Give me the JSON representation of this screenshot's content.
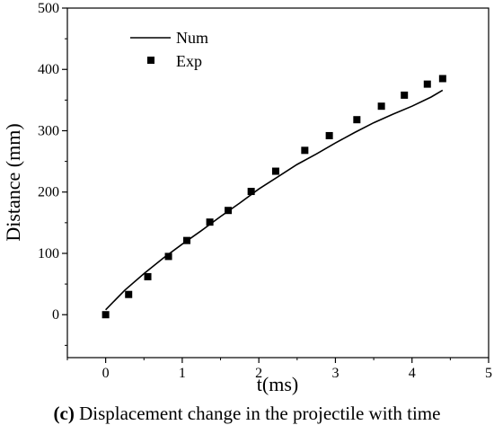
{
  "chart_data": {
    "type": "line+scatter",
    "title": "",
    "xlabel": "t(ms)",
    "ylabel": "Distance (mm)",
    "xlim": [
      -0.5,
      5
    ],
    "ylim": [
      -70,
      500
    ],
    "xticks": [
      "0",
      "1",
      "2",
      "3",
      "4",
      "5"
    ],
    "yticks": [
      "0",
      "100",
      "200",
      "300",
      "400",
      "500"
    ],
    "legend_position": "top-left",
    "series": [
      {
        "name": "Num",
        "kind": "line",
        "color": "#000000",
        "x": [
          0,
          0.25,
          0.5,
          0.75,
          1.0,
          1.25,
          1.5,
          1.75,
          2.0,
          2.25,
          2.5,
          2.75,
          3.0,
          3.25,
          3.5,
          3.75,
          4.0,
          4.25,
          4.4
        ],
        "y": [
          8,
          40,
          67,
          92,
          115,
          137,
          160,
          182,
          205,
          225,
          245,
          262,
          280,
          297,
          313,
          327,
          340,
          355,
          366
        ]
      },
      {
        "name": "Exp",
        "kind": "scatter",
        "marker": "square",
        "color": "#000000",
        "x": [
          0,
          0.3,
          0.55,
          0.82,
          1.06,
          1.36,
          1.6,
          1.9,
          2.22,
          2.6,
          2.92,
          3.28,
          3.6,
          3.9,
          4.2,
          4.4
        ],
        "y": [
          0,
          33,
          62,
          95,
          121,
          151,
          170,
          201,
          234,
          268,
          292,
          318,
          340,
          358,
          376,
          385
        ]
      }
    ]
  },
  "caption": {
    "label": "(c)",
    "text": " Displacement change in the projectile with time"
  }
}
